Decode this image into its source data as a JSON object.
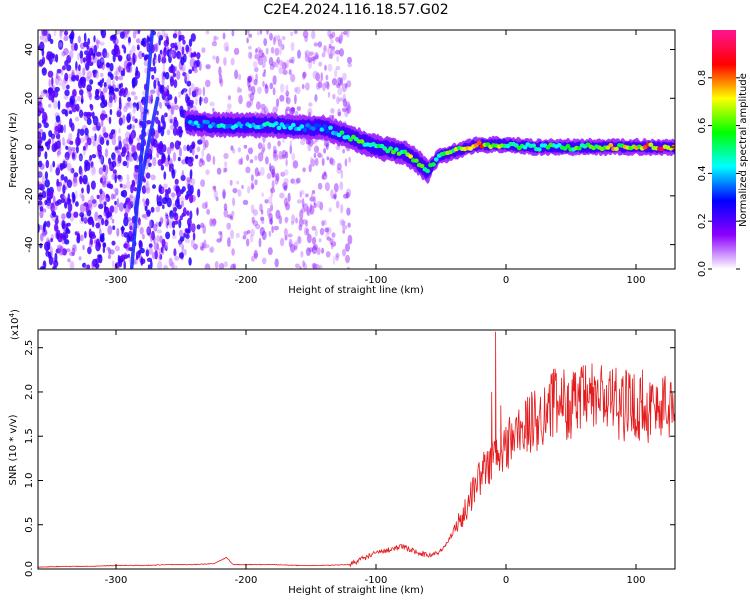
{
  "title": "C2E4.2024.116.18.57.G02",
  "chart_data": [
    {
      "type": "heatmap",
      "xlabel": "Height of straight line (km)",
      "ylabel": "Frequency (Hz)",
      "xlim": [
        -360,
        130
      ],
      "ylim": [
        -50,
        48
      ],
      "x_ticks": [
        -300,
        -200,
        -100,
        0,
        100
      ],
      "y_ticks": [
        -40,
        -20,
        0,
        20,
        40
      ],
      "colorbar": {
        "label": "Normalized spectral amplitude",
        "range": [
          0.0,
          1.0
        ],
        "ticks": [
          "0.0",
          "0.2",
          "0.4",
          "0.6",
          "0.8"
        ],
        "tick_values": [
          0.0,
          0.2,
          0.4,
          0.6,
          0.8
        ],
        "colormap": [
          "#ffffff",
          "#8b00ff",
          "#0000ff",
          "#00ffff",
          "#00ff00",
          "#ffff00",
          "#ff0000",
          "#ff1493"
        ]
      },
      "features": {
        "diagonal_streaks": [
          {
            "x_start": -288,
            "y_start": -50,
            "x_end": -272,
            "y_end": 48
          },
          {
            "x_start": -285,
            "y_start": -25,
            "x_end": -268,
            "y_end": 20
          }
        ],
        "main_ridge": {
          "x": [
            -245,
            -220,
            -200,
            -180,
            -160,
            -140,
            -130,
            -120,
            -110,
            -100,
            -90,
            -80,
            -70,
            -60,
            -55,
            -50,
            -45,
            -40,
            -30,
            -20,
            -10,
            0,
            20,
            40,
            60,
            80,
            100,
            120,
            130
          ],
          "y": [
            10,
            9,
            9,
            9,
            8,
            8,
            6,
            4,
            2,
            0,
            -1,
            -2,
            -5,
            -10,
            -6,
            -3,
            -3,
            -2,
            0,
            1,
            1,
            1,
            0,
            0,
            0,
            0,
            0,
            0,
            0
          ],
          "amplitude": [
            0.4,
            0.45,
            0.4,
            0.45,
            0.4,
            0.4,
            0.45,
            0.55,
            0.6,
            0.5,
            0.55,
            0.6,
            0.7,
            0.55,
            0.5,
            0.6,
            0.75,
            0.65,
            0.75,
            0.8,
            0.7,
            0.55,
            0.55,
            0.55,
            0.6,
            0.7,
            0.75,
            0.85,
            0.9
          ]
        }
      }
    },
    {
      "type": "line",
      "xlabel": "Height of straight line (km)",
      "ylabel": "SNR (10 * v/v)",
      "y_scale_label": "(x10",
      "y_scale_exp": "4",
      "y_scale_close": ")",
      "xlim": [
        -360,
        130
      ],
      "ylim": [
        0,
        2.7
      ],
      "x_ticks": [
        -300,
        -200,
        -100,
        0,
        100
      ],
      "y_ticks": [
        0.0,
        0.5,
        1.0,
        1.5,
        2.0,
        2.5
      ],
      "y_tick_labels": [
        "0.0",
        "0.5",
        "1.0",
        "1.5",
        "2.0",
        "2.5"
      ],
      "series": [
        {
          "color": "#e41a1c",
          "x": [
            -360,
            -340,
            -320,
            -300,
            -280,
            -260,
            -240,
            -225,
            -215,
            -210,
            -200,
            -180,
            -160,
            -140,
            -120,
            -110,
            -100,
            -90,
            -80,
            -70,
            -60,
            -50,
            -45,
            -40,
            -35,
            -30,
            -25,
            -20,
            -15,
            -12,
            -10,
            -8,
            -5,
            0,
            5,
            10,
            15,
            20,
            25,
            30,
            40,
            50,
            60,
            70,
            80,
            90,
            100,
            110,
            120,
            130
          ],
          "values": [
            0.02,
            0.03,
            0.03,
            0.04,
            0.04,
            0.05,
            0.05,
            0.06,
            0.13,
            0.05,
            0.05,
            0.05,
            0.04,
            0.04,
            0.05,
            0.12,
            0.18,
            0.22,
            0.25,
            0.2,
            0.15,
            0.2,
            0.3,
            0.45,
            0.55,
            0.7,
            0.9,
            1.05,
            1.15,
            1.2,
            1.25,
            1.3,
            1.2,
            1.4,
            1.5,
            1.55,
            1.6,
            1.65,
            1.7,
            1.8,
            1.9,
            1.85,
            1.9,
            1.95,
            1.9,
            1.85,
            1.85,
            1.8,
            1.85,
            1.8
          ],
          "spikes": [
            {
              "x": -8,
              "value": 2.68
            },
            {
              "x": -11,
              "value": 2.0
            },
            {
              "x": -4,
              "value": 1.85
            },
            {
              "x": 15,
              "value": 1.9
            },
            {
              "x": 48,
              "value": 2.1
            },
            {
              "x": 82,
              "value": 2.2
            },
            {
              "x": 105,
              "value": 2.25
            }
          ]
        }
      ]
    }
  ]
}
